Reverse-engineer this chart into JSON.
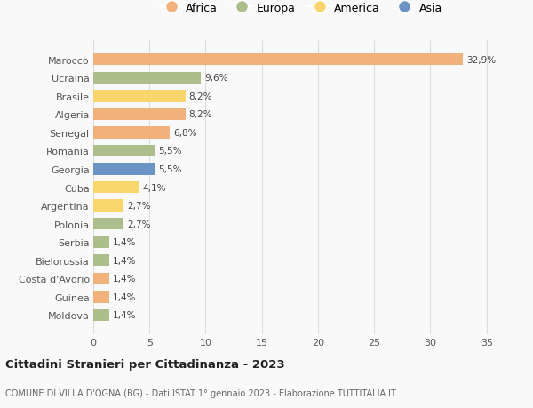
{
  "countries": [
    "Marocco",
    "Ucraina",
    "Brasile",
    "Algeria",
    "Senegal",
    "Romania",
    "Georgia",
    "Cuba",
    "Argentina",
    "Polonia",
    "Serbia",
    "Bielorussia",
    "Costa d'Avorio",
    "Guinea",
    "Moldova"
  ],
  "values": [
    32.9,
    9.6,
    8.2,
    8.2,
    6.8,
    5.5,
    5.5,
    4.1,
    2.7,
    2.7,
    1.4,
    1.4,
    1.4,
    1.4,
    1.4
  ],
  "labels": [
    "32,9%",
    "9,6%",
    "8,2%",
    "8,2%",
    "6,8%",
    "5,5%",
    "5,5%",
    "4,1%",
    "2,7%",
    "2,7%",
    "1,4%",
    "1,4%",
    "1,4%",
    "1,4%",
    "1,4%"
  ],
  "continents": [
    "Africa",
    "Europa",
    "America",
    "Africa",
    "Africa",
    "Europa",
    "Asia",
    "America",
    "America",
    "Europa",
    "Europa",
    "Europa",
    "Africa",
    "Africa",
    "Europa"
  ],
  "continent_colors": {
    "Africa": "#F0B27A",
    "Europa": "#ABBE8C",
    "America": "#F9D66B",
    "Asia": "#6B93C4"
  },
  "legend_labels": [
    "Africa",
    "Europa",
    "America",
    "Asia"
  ],
  "legend_colors": [
    "#F0B27A",
    "#ABBE8C",
    "#F9D66B",
    "#6B93C4"
  ],
  "title": "Cittadini Stranieri per Cittadinanza - 2023",
  "subtitle": "COMUNE DI VILLA D'OGNA (BG) - Dati ISTAT 1° gennaio 2023 - Elaborazione TUTTITALIA.IT",
  "xlim": [
    0,
    37
  ],
  "xticks": [
    0,
    5,
    10,
    15,
    20,
    25,
    30,
    35
  ],
  "background_color": "#f9f9f9",
  "grid_color": "#dddddd"
}
